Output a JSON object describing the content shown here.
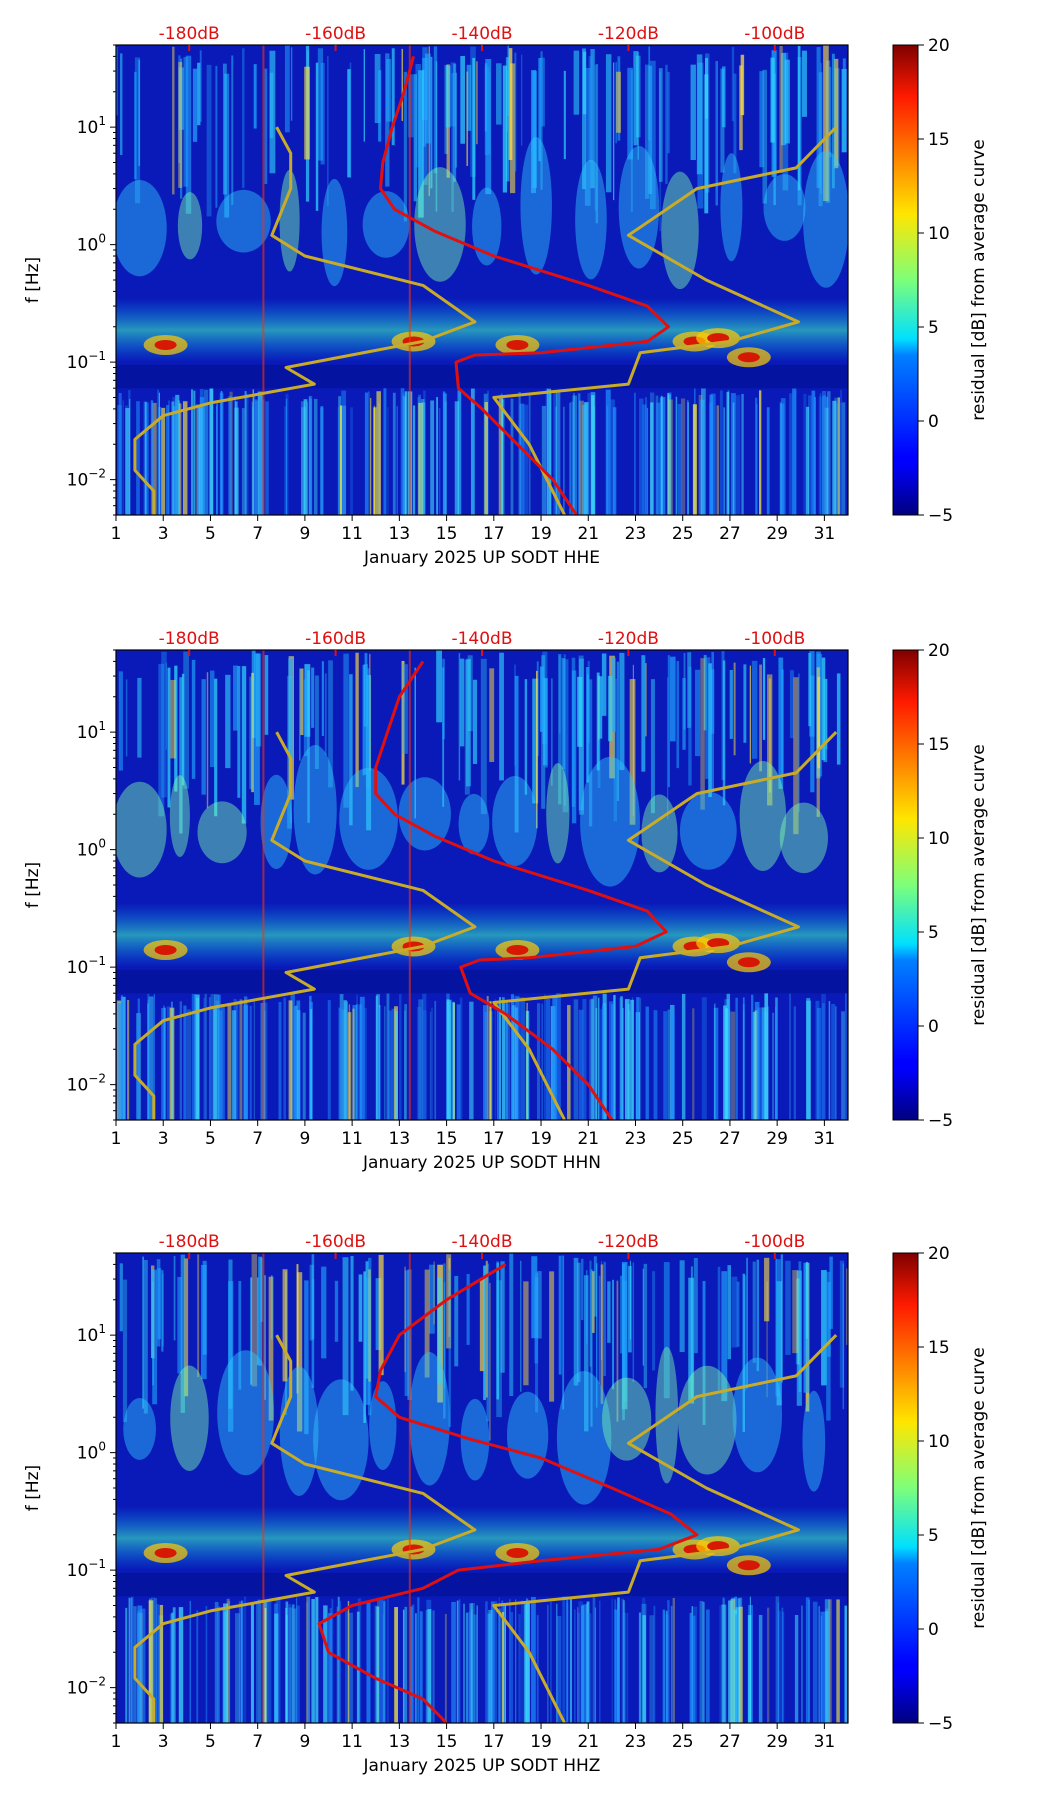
{
  "colors": {
    "curve_red": "#e01010",
    "curve_gold": "#c8ab28",
    "top_label": "#e01010",
    "axis": "#000000"
  },
  "chart_data": [
    {
      "type": "heatmap",
      "channel": "HHE",
      "xlabel": "January 2025 UP SODT  HHE",
      "ylabel": "f [Hz]",
      "x_ticks": [
        "1",
        "3",
        "5",
        "7",
        "9",
        "11",
        "13",
        "15",
        "17",
        "19",
        "21",
        "23",
        "25",
        "27",
        "29",
        "31"
      ],
      "x_range": [
        1,
        32
      ],
      "y_scale": "log",
      "y_range": [
        0.005,
        50
      ],
      "y_ticks": [
        {
          "value": 0.01,
          "base": "10",
          "exp": "−2"
        },
        {
          "value": 0.1,
          "base": "10",
          "exp": "−1"
        },
        {
          "value": 1,
          "base": "10",
          "exp": "0"
        },
        {
          "value": 10,
          "base": "10",
          "exp": "1"
        }
      ],
      "top_axis_labels": [
        "-180dB",
        "-160dB",
        "-140dB",
        "-120dB",
        "-100dB"
      ],
      "top_axis_positions_day": [
        4.1,
        10.3,
        16.5,
        22.7,
        28.9
      ],
      "colorbar": {
        "label": "residual [dB] from average curve",
        "min": -5,
        "max": 20,
        "ticks": [
          "20",
          "15",
          "10",
          "5",
          "0",
          "−5"
        ]
      },
      "red_curve": [
        [
          13.6,
          40
        ],
        [
          13.2,
          20
        ],
        [
          12.7,
          10
        ],
        [
          12.3,
          5
        ],
        [
          12.2,
          3
        ],
        [
          12.8,
          2
        ],
        [
          14.5,
          1.3
        ],
        [
          17,
          0.8
        ],
        [
          21,
          0.45
        ],
        [
          23.5,
          0.3
        ],
        [
          24.4,
          0.2
        ],
        [
          23.5,
          0.15
        ],
        [
          19,
          0.12
        ],
        [
          16.2,
          0.115
        ],
        [
          15.4,
          0.1
        ],
        [
          15.5,
          0.06
        ],
        [
          16.5,
          0.04
        ],
        [
          18,
          0.02
        ],
        [
          19.5,
          0.01
        ],
        [
          20.5,
          0.005
        ]
      ],
      "gold_curve": [
        [
          7.8,
          10
        ],
        [
          8.4,
          6
        ],
        [
          8.4,
          3
        ],
        [
          7.6,
          1.2
        ],
        [
          9,
          0.8
        ],
        [
          14,
          0.45
        ],
        [
          16.2,
          0.22
        ],
        [
          14,
          0.15
        ],
        [
          8.2,
          0.09
        ],
        [
          9.4,
          0.065
        ],
        [
          5,
          0.045
        ],
        [
          3,
          0.035
        ],
        [
          1.8,
          0.022
        ],
        [
          1.8,
          0.012
        ],
        [
          2.6,
          0.008
        ],
        [
          2.6,
          0.005
        ]
      ],
      "gold_curve_right": [
        [
          31.5,
          10
        ],
        [
          29.8,
          4.5
        ],
        [
          25.6,
          3
        ],
        [
          22.7,
          1.2
        ],
        [
          26,
          0.5
        ],
        [
          29.9,
          0.22
        ],
        [
          27,
          0.15
        ],
        [
          23.2,
          0.12
        ],
        [
          22.7,
          0.065
        ],
        [
          17,
          0.05
        ],
        [
          18.5,
          0.02
        ],
        [
          20,
          0.005
        ]
      ]
    },
    {
      "type": "heatmap",
      "channel": "HHN",
      "xlabel": "January 2025 UP SODT  HHN",
      "ylabel": "f [Hz]",
      "x_ticks": [
        "1",
        "3",
        "5",
        "7",
        "9",
        "11",
        "13",
        "15",
        "17",
        "19",
        "21",
        "23",
        "25",
        "27",
        "29",
        "31"
      ],
      "x_range": [
        1,
        32
      ],
      "y_scale": "log",
      "y_range": [
        0.005,
        50
      ],
      "y_ticks": [
        {
          "value": 0.01,
          "base": "10",
          "exp": "−2"
        },
        {
          "value": 0.1,
          "base": "10",
          "exp": "−1"
        },
        {
          "value": 1,
          "base": "10",
          "exp": "0"
        },
        {
          "value": 10,
          "base": "10",
          "exp": "1"
        }
      ],
      "top_axis_labels": [
        "-180dB",
        "-160dB",
        "-140dB",
        "-120dB",
        "-100dB"
      ],
      "top_axis_positions_day": [
        4.1,
        10.3,
        16.5,
        22.7,
        28.9
      ],
      "colorbar": {
        "label": "residual [dB] from average curve",
        "min": -5,
        "max": 20,
        "ticks": [
          "20",
          "15",
          "10",
          "5",
          "0",
          "−5"
        ]
      },
      "red_curve": [
        [
          14,
          40
        ],
        [
          13,
          20
        ],
        [
          12.5,
          10
        ],
        [
          12,
          5
        ],
        [
          12,
          3
        ],
        [
          12.8,
          2
        ],
        [
          14.5,
          1.3
        ],
        [
          17,
          0.8
        ],
        [
          21,
          0.45
        ],
        [
          23.5,
          0.3
        ],
        [
          24.3,
          0.2
        ],
        [
          23,
          0.15
        ],
        [
          18.5,
          0.12
        ],
        [
          16.4,
          0.115
        ],
        [
          15.6,
          0.1
        ],
        [
          16,
          0.06
        ],
        [
          17.5,
          0.04
        ],
        [
          19.5,
          0.02
        ],
        [
          21,
          0.01
        ],
        [
          22,
          0.005
        ]
      ],
      "gold_curve": [
        [
          7.8,
          10
        ],
        [
          8.4,
          6
        ],
        [
          8.4,
          3
        ],
        [
          7.6,
          1.2
        ],
        [
          9,
          0.8
        ],
        [
          14,
          0.45
        ],
        [
          16.2,
          0.22
        ],
        [
          14,
          0.15
        ],
        [
          8.2,
          0.09
        ],
        [
          9.4,
          0.065
        ],
        [
          5,
          0.045
        ],
        [
          3,
          0.035
        ],
        [
          1.8,
          0.022
        ],
        [
          1.8,
          0.012
        ],
        [
          2.6,
          0.008
        ],
        [
          2.6,
          0.005
        ]
      ],
      "gold_curve_right": [
        [
          31.5,
          10
        ],
        [
          29.8,
          4.5
        ],
        [
          25.6,
          3
        ],
        [
          22.7,
          1.2
        ],
        [
          26,
          0.5
        ],
        [
          29.9,
          0.22
        ],
        [
          27,
          0.15
        ],
        [
          23.2,
          0.12
        ],
        [
          22.7,
          0.065
        ],
        [
          17,
          0.05
        ],
        [
          18.5,
          0.02
        ],
        [
          20,
          0.005
        ]
      ]
    },
    {
      "type": "heatmap",
      "channel": "HHZ",
      "xlabel": "January 2025 UP SODT  HHZ",
      "ylabel": "f [Hz]",
      "x_ticks": [
        "1",
        "3",
        "5",
        "7",
        "9",
        "11",
        "13",
        "15",
        "17",
        "19",
        "21",
        "23",
        "25",
        "27",
        "29",
        "31"
      ],
      "x_range": [
        1,
        32
      ],
      "y_scale": "log",
      "y_range": [
        0.005,
        50
      ],
      "y_ticks": [
        {
          "value": 0.01,
          "base": "10",
          "exp": "−2"
        },
        {
          "value": 0.1,
          "base": "10",
          "exp": "−1"
        },
        {
          "value": 1,
          "base": "10",
          "exp": "0"
        },
        {
          "value": 10,
          "base": "10",
          "exp": "1"
        }
      ],
      "top_axis_labels": [
        "-180dB",
        "-160dB",
        "-140dB",
        "-120dB",
        "-100dB"
      ],
      "top_axis_positions_day": [
        4.1,
        10.3,
        16.5,
        22.7,
        28.9
      ],
      "colorbar": {
        "label": "residual [dB] from average curve",
        "min": -5,
        "max": 20,
        "ticks": [
          "20",
          "15",
          "10",
          "5",
          "0",
          "−5"
        ]
      },
      "red_curve": [
        [
          17.5,
          40
        ],
        [
          15,
          20
        ],
        [
          13,
          10
        ],
        [
          12.2,
          5
        ],
        [
          12,
          3
        ],
        [
          13,
          2
        ],
        [
          16,
          1.3
        ],
        [
          19,
          0.9
        ],
        [
          22,
          0.5
        ],
        [
          24.5,
          0.3
        ],
        [
          25.6,
          0.2
        ],
        [
          24,
          0.15
        ],
        [
          19,
          0.12
        ],
        [
          15.5,
          0.1
        ],
        [
          14,
          0.07
        ],
        [
          11,
          0.05
        ],
        [
          9.6,
          0.035
        ],
        [
          10,
          0.02
        ],
        [
          12,
          0.012
        ],
        [
          14,
          0.008
        ],
        [
          15,
          0.005
        ]
      ],
      "gold_curve": [
        [
          7.8,
          10
        ],
        [
          8.4,
          6
        ],
        [
          8.4,
          3
        ],
        [
          7.6,
          1.2
        ],
        [
          9,
          0.8
        ],
        [
          14,
          0.45
        ],
        [
          16.2,
          0.22
        ],
        [
          14,
          0.15
        ],
        [
          8.2,
          0.09
        ],
        [
          9.4,
          0.065
        ],
        [
          5,
          0.045
        ],
        [
          3,
          0.035
        ],
        [
          1.8,
          0.022
        ],
        [
          1.8,
          0.012
        ],
        [
          2.6,
          0.008
        ],
        [
          2.6,
          0.005
        ]
      ],
      "gold_curve_right": [
        [
          31.5,
          10
        ],
        [
          29.8,
          4.5
        ],
        [
          25.6,
          3
        ],
        [
          22.7,
          1.2
        ],
        [
          26,
          0.5
        ],
        [
          29.9,
          0.22
        ],
        [
          27,
          0.15
        ],
        [
          23.2,
          0.12
        ],
        [
          22.7,
          0.065
        ],
        [
          17,
          0.05
        ],
        [
          18.5,
          0.02
        ],
        [
          20,
          0.005
        ]
      ]
    }
  ]
}
